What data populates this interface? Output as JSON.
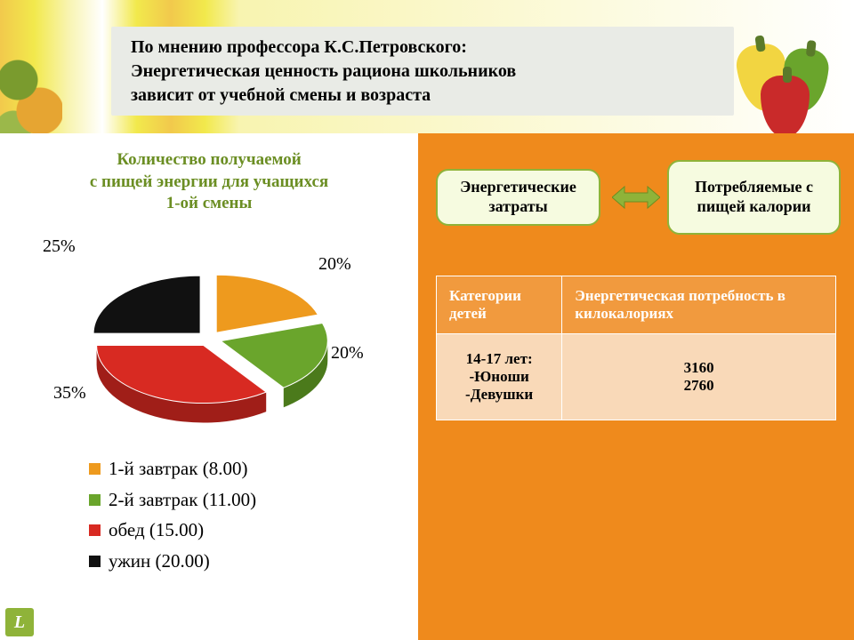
{
  "header": {
    "title_line1": "По мнению профессора К.С.Петровского:",
    "title_line2": "Энергетическая ценность рациона школьников",
    "title_line3": "зависит от учебной смены и возраста"
  },
  "pie_chart": {
    "title_line1": "Количество получаемой",
    "title_line2": "с пищей энергии для учащихся",
    "title_line3": "1-ой смены",
    "type": "pie_3d_exploded",
    "title_color": "#6b8e23",
    "title_fontsize": 19,
    "pct_fontsize": 20,
    "slices": [
      {
        "label": "1-й завтрак (8.00)",
        "value": 20,
        "color": "#ee9a1e",
        "side": "#b87315",
        "pct_label": "20%"
      },
      {
        "label": "2-й завтрак (11.00)",
        "value": 20,
        "color": "#6aa52c",
        "side": "#4b7a1b",
        "pct_label": "20%"
      },
      {
        "label": "обед (15.00)",
        "value": 35,
        "color": "#d82a22",
        "side": "#a01e18",
        "pct_label": "35%"
      },
      {
        "label": "ужин (20.00)",
        "value": 25,
        "color": "#111111",
        "side": "#000000",
        "pct_label": "25%"
      }
    ],
    "legend_fontsize": 21,
    "legend_marker_size": 13,
    "background_color": "#ffffff"
  },
  "flow": {
    "left_label": "Энергетические затраты",
    "right_label": "Потребляемые с пищей калории",
    "box_bg": "#f6fbe0",
    "box_border": "#8fb339",
    "arrow_color": "#8fb339",
    "fontsize": 18
  },
  "table": {
    "header_bg": "#f19a3e",
    "header_color": "#ffffff",
    "cell_bg": "#f9d9b8",
    "border_color": "#ffffff",
    "fontsize": 17,
    "columns": [
      "Категории детей",
      "Энергетическая потребность в килокалориях"
    ],
    "rows": [
      {
        "category_lines": [
          "14-17 лет:",
          "-Юноши",
          "-Девушки"
        ],
        "value_lines": [
          "3160",
          "2760"
        ]
      }
    ]
  },
  "panel_colors": {
    "right_bg": "#ef8a1c",
    "left_bg": "#ffffff",
    "title_bar_bg": "#e9ebe6"
  },
  "logo": {
    "letter": "L",
    "bg": "#8fb339"
  }
}
